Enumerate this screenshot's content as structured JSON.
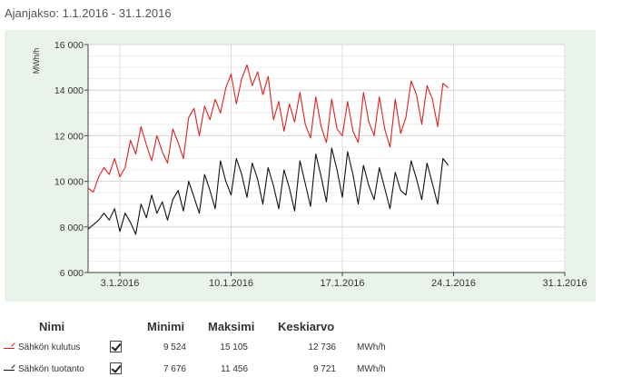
{
  "period": {
    "label": "Ajanjakso: 1.1.2016 - 31.1.2016"
  },
  "legend_table": {
    "headers": {
      "name": "Nimi",
      "min": "Minimi",
      "max": "Maksimi",
      "avg": "Keskiarvo"
    },
    "rows": [
      {
        "name": "Sähkön kulutus",
        "min": "9 524",
        "max": "15 105",
        "avg": "12 736",
        "unit": "MWh/h",
        "checked": true,
        "color": "#e02020"
      },
      {
        "name": "Sähkön tuotanto",
        "min": "7 676",
        "max": "11 456",
        "avg": "9 721",
        "unit": "MWh/h",
        "checked": true,
        "color": "#111111"
      }
    ]
  },
  "chart_data": {
    "type": "line",
    "ylabel": "MWh/h",
    "ylim": [
      6000,
      16000
    ],
    "yticks": [
      6000,
      8000,
      10000,
      12000,
      14000,
      16000
    ],
    "ytick_labels": [
      "6 000",
      "8 000",
      "10 000",
      "12 000",
      "14 000",
      "16 000"
    ],
    "xlim": [
      "2016-01-01",
      "2016-01-31"
    ],
    "xticks": [
      "2016-01-03",
      "2016-01-10",
      "2016-01-17",
      "2016-01-24",
      "2016-01-31"
    ],
    "xtick_labels": [
      "3.1.2016",
      "10.1.2016",
      "17.1.2016",
      "24.1.2016",
      "31.1.2016"
    ],
    "grid": true,
    "series": [
      {
        "name": "Sähkön kulutus",
        "color": "#e02020",
        "points": [
          [
            "2016-01-01",
            9700
          ],
          [
            "2016-01-01 08:00",
            9524
          ],
          [
            "2016-01-01 16:00",
            10200
          ],
          [
            "2016-01-02 00:00",
            10600
          ],
          [
            "2016-01-02 08:00",
            10300
          ],
          [
            "2016-01-02 16:00",
            11000
          ],
          [
            "2016-01-03 00:00",
            10200
          ],
          [
            "2016-01-03 08:00",
            10600
          ],
          [
            "2016-01-03 16:00",
            11800
          ],
          [
            "2016-01-04 00:00",
            11200
          ],
          [
            "2016-01-04 08:00",
            12400
          ],
          [
            "2016-01-04 16:00",
            11600
          ],
          [
            "2016-01-05 00:00",
            10900
          ],
          [
            "2016-01-05 08:00",
            12000
          ],
          [
            "2016-01-05 16:00",
            11300
          ],
          [
            "2016-01-06 00:00",
            10800
          ],
          [
            "2016-01-06 08:00",
            12300
          ],
          [
            "2016-01-06 16:00",
            11700
          ],
          [
            "2016-01-07 00:00",
            11000
          ],
          [
            "2016-01-07 08:00",
            12800
          ],
          [
            "2016-01-07 16:00",
            13200
          ],
          [
            "2016-01-08 00:00",
            12000
          ],
          [
            "2016-01-08 08:00",
            13300
          ],
          [
            "2016-01-08 16:00",
            12700
          ],
          [
            "2016-01-09 00:00",
            13600
          ],
          [
            "2016-01-09 08:00",
            13000
          ],
          [
            "2016-01-09 16:00",
            14100
          ],
          [
            "2016-01-10 00:00",
            14700
          ],
          [
            "2016-01-10 08:00",
            13400
          ],
          [
            "2016-01-10 16:00",
            14500
          ],
          [
            "2016-01-11 00:00",
            15105
          ],
          [
            "2016-01-11 08:00",
            14200
          ],
          [
            "2016-01-11 16:00",
            14800
          ],
          [
            "2016-01-12 00:00",
            13800
          ],
          [
            "2016-01-12 08:00",
            14600
          ],
          [
            "2016-01-12 16:00",
            12700
          ],
          [
            "2016-01-13 00:00",
            13500
          ],
          [
            "2016-01-13 08:00",
            12200
          ],
          [
            "2016-01-13 16:00",
            13400
          ],
          [
            "2016-01-14 00:00",
            12600
          ],
          [
            "2016-01-14 08:00",
            13900
          ],
          [
            "2016-01-14 16:00",
            12500
          ],
          [
            "2016-01-15 00:00",
            11900
          ],
          [
            "2016-01-15 08:00",
            13700
          ],
          [
            "2016-01-15 16:00",
            12400
          ],
          [
            "2016-01-16 00:00",
            11700
          ],
          [
            "2016-01-16 08:00",
            13600
          ],
          [
            "2016-01-16 16:00",
            12300
          ],
          [
            "2016-01-17 00:00",
            12000
          ],
          [
            "2016-01-17 08:00",
            13500
          ],
          [
            "2016-01-17 16:00",
            12200
          ],
          [
            "2016-01-18 00:00",
            11700
          ],
          [
            "2016-01-18 08:00",
            13900
          ],
          [
            "2016-01-18 16:00",
            12600
          ],
          [
            "2016-01-19 00:00",
            12000
          ],
          [
            "2016-01-19 08:00",
            13700
          ],
          [
            "2016-01-19 16:00",
            12300
          ],
          [
            "2016-01-20 00:00",
            11500
          ],
          [
            "2016-01-20 08:00",
            13600
          ],
          [
            "2016-01-20 16:00",
            12100
          ],
          [
            "2016-01-21 00:00",
            12800
          ],
          [
            "2016-01-21 08:00",
            14400
          ],
          [
            "2016-01-21 16:00",
            13800
          ],
          [
            "2016-01-22 00:00",
            12500
          ],
          [
            "2016-01-22 08:00",
            14200
          ],
          [
            "2016-01-22 16:00",
            13600
          ],
          [
            "2016-01-23 00:00",
            12400
          ],
          [
            "2016-01-23 08:00",
            14300
          ],
          [
            "2016-01-23 16:00",
            14100
          ]
        ]
      },
      {
        "name": "Sähkön tuotanto",
        "color": "#111111",
        "points": [
          [
            "2016-01-01",
            7900
          ],
          [
            "2016-01-01 08:00",
            8100
          ],
          [
            "2016-01-01 16:00",
            8300
          ],
          [
            "2016-01-02 00:00",
            8600
          ],
          [
            "2016-01-02 08:00",
            8300
          ],
          [
            "2016-01-02 16:00",
            8800
          ],
          [
            "2016-01-03 00:00",
            7800
          ],
          [
            "2016-01-03 08:00",
            8600
          ],
          [
            "2016-01-03 16:00",
            8200
          ],
          [
            "2016-01-04 00:00",
            7676
          ],
          [
            "2016-01-04 08:00",
            9000
          ],
          [
            "2016-01-04 16:00",
            8400
          ],
          [
            "2016-01-05 00:00",
            9400
          ],
          [
            "2016-01-05 08:00",
            8600
          ],
          [
            "2016-01-05 16:00",
            9100
          ],
          [
            "2016-01-06 00:00",
            8300
          ],
          [
            "2016-01-06 08:00",
            9200
          ],
          [
            "2016-01-06 16:00",
            9600
          ],
          [
            "2016-01-07 00:00",
            8700
          ],
          [
            "2016-01-07 08:00",
            10000
          ],
          [
            "2016-01-07 16:00",
            9300
          ],
          [
            "2016-01-08 00:00",
            8600
          ],
          [
            "2016-01-08 08:00",
            10300
          ],
          [
            "2016-01-08 16:00",
            9600
          ],
          [
            "2016-01-09 00:00",
            8800
          ],
          [
            "2016-01-09 08:00",
            10900
          ],
          [
            "2016-01-09 16:00",
            10000
          ],
          [
            "2016-01-10 00:00",
            9400
          ],
          [
            "2016-01-10 08:00",
            11000
          ],
          [
            "2016-01-10 16:00",
            10300
          ],
          [
            "2016-01-11 00:00",
            9300
          ],
          [
            "2016-01-11 08:00",
            10800
          ],
          [
            "2016-01-11 16:00",
            10100
          ],
          [
            "2016-01-12 00:00",
            9000
          ],
          [
            "2016-01-12 08:00",
            10600
          ],
          [
            "2016-01-12 16:00",
            9800
          ],
          [
            "2016-01-13 00:00",
            8800
          ],
          [
            "2016-01-13 08:00",
            10500
          ],
          [
            "2016-01-13 16:00",
            9700
          ],
          [
            "2016-01-14 00:00",
            8700
          ],
          [
            "2016-01-14 08:00",
            10900
          ],
          [
            "2016-01-14 16:00",
            9900
          ],
          [
            "2016-01-15 00:00",
            8900
          ],
          [
            "2016-01-15 08:00",
            11200
          ],
          [
            "2016-01-15 16:00",
            10200
          ],
          [
            "2016-01-16 00:00",
            9100
          ],
          [
            "2016-01-16 08:00",
            11456
          ],
          [
            "2016-01-16 16:00",
            10500
          ],
          [
            "2016-01-17 00:00",
            9300
          ],
          [
            "2016-01-17 08:00",
            11300
          ],
          [
            "2016-01-17 16:00",
            10300
          ],
          [
            "2016-01-18 00:00",
            9000
          ],
          [
            "2016-01-18 08:00",
            10700
          ],
          [
            "2016-01-18 16:00",
            9800
          ],
          [
            "2016-01-19 00:00",
            9200
          ],
          [
            "2016-01-19 08:00",
            10600
          ],
          [
            "2016-01-19 16:00",
            9700
          ],
          [
            "2016-01-20 00:00",
            8800
          ],
          [
            "2016-01-20 08:00",
            10400
          ],
          [
            "2016-01-20 16:00",
            9600
          ],
          [
            "2016-01-21 00:00",
            9400
          ],
          [
            "2016-01-21 08:00",
            10900
          ],
          [
            "2016-01-21 16:00",
            10100
          ],
          [
            "2016-01-22 00:00",
            9200
          ],
          [
            "2016-01-22 08:00",
            10800
          ],
          [
            "2016-01-22 16:00",
            9900
          ],
          [
            "2016-01-23 00:00",
            9000
          ],
          [
            "2016-01-23 08:00",
            11000
          ],
          [
            "2016-01-23 16:00",
            10700
          ]
        ]
      }
    ]
  }
}
